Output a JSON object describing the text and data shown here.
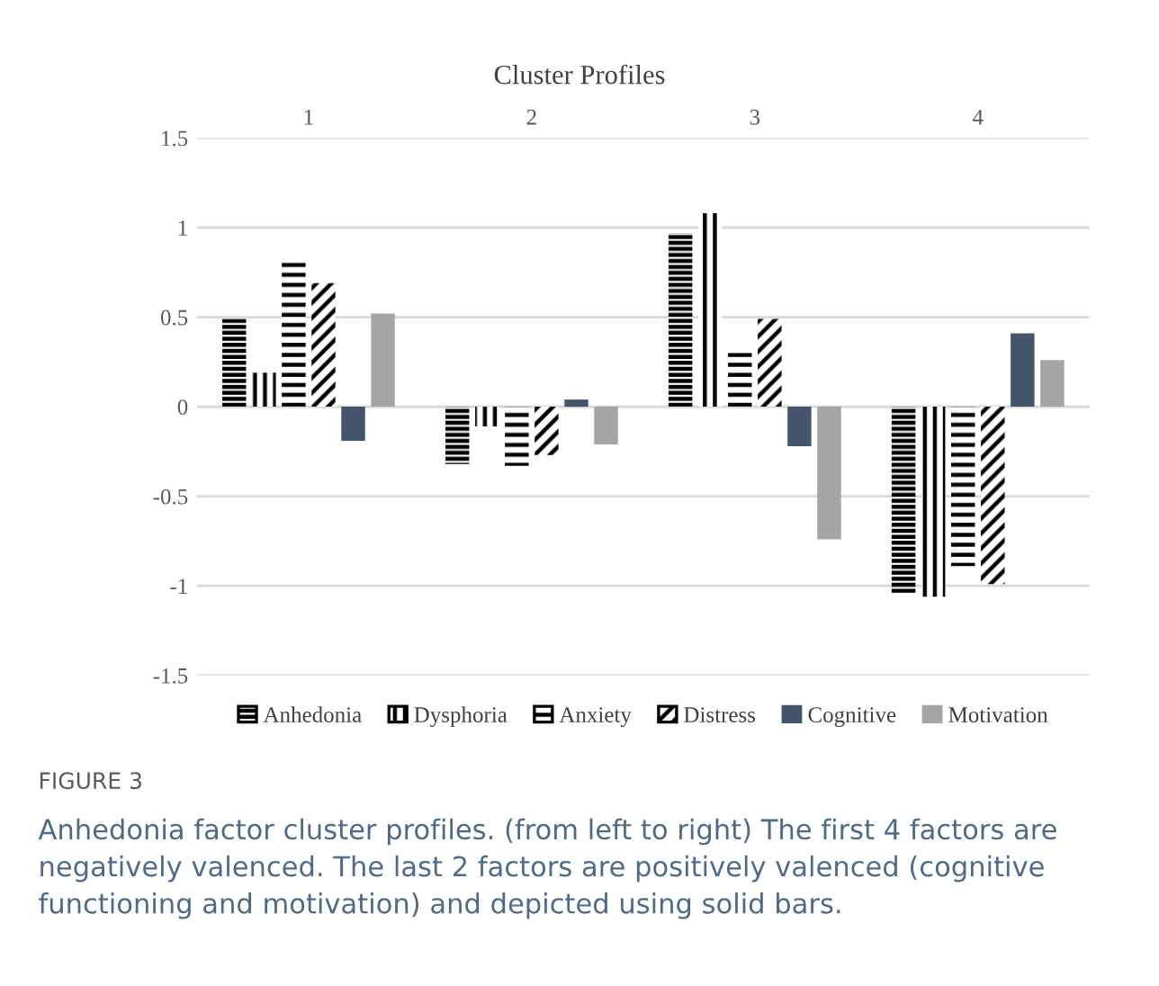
{
  "chart_data": {
    "type": "bar",
    "title": "Cluster Profiles",
    "categories": [
      "1",
      "2",
      "3",
      "4"
    ],
    "series": [
      {
        "name": "Anhedonia",
        "color": "#000000",
        "values": [
          0.49,
          -0.32,
          0.97,
          -1.04
        ]
      },
      {
        "name": "Dysphoria",
        "color": "#000000",
        "values": [
          0.19,
          -0.11,
          1.08,
          -1.06
        ]
      },
      {
        "name": "Anxiety",
        "color": "#000000",
        "values": [
          0.81,
          -0.33,
          0.3,
          -0.89
        ]
      },
      {
        "name": "Distress",
        "color": "#000000",
        "values": [
          0.69,
          -0.27,
          0.49,
          -0.99
        ]
      },
      {
        "name": "Cognitive",
        "color": "#44546a",
        "values": [
          -0.19,
          0.04,
          -0.22,
          0.41
        ]
      },
      {
        "name": "Motivation",
        "color": "#a5a5a5",
        "values": [
          0.52,
          -0.21,
          -0.74,
          0.26
        ]
      }
    ],
    "ylim": [
      -1.5,
      1.5
    ],
    "yticks": [
      -1.5,
      -1,
      -0.5,
      0,
      0.5,
      1,
      1.5
    ],
    "grid": "y",
    "legend": "bottom",
    "annotations": [
      "FIGURE 3",
      "Anhedonia factor cluster profiles. (from left to right) The first 4 factors are negatively valenced. The last 2 factors are positively valenced (cognitive functioning and motivation) and depicted using solid bars."
    ]
  }
}
